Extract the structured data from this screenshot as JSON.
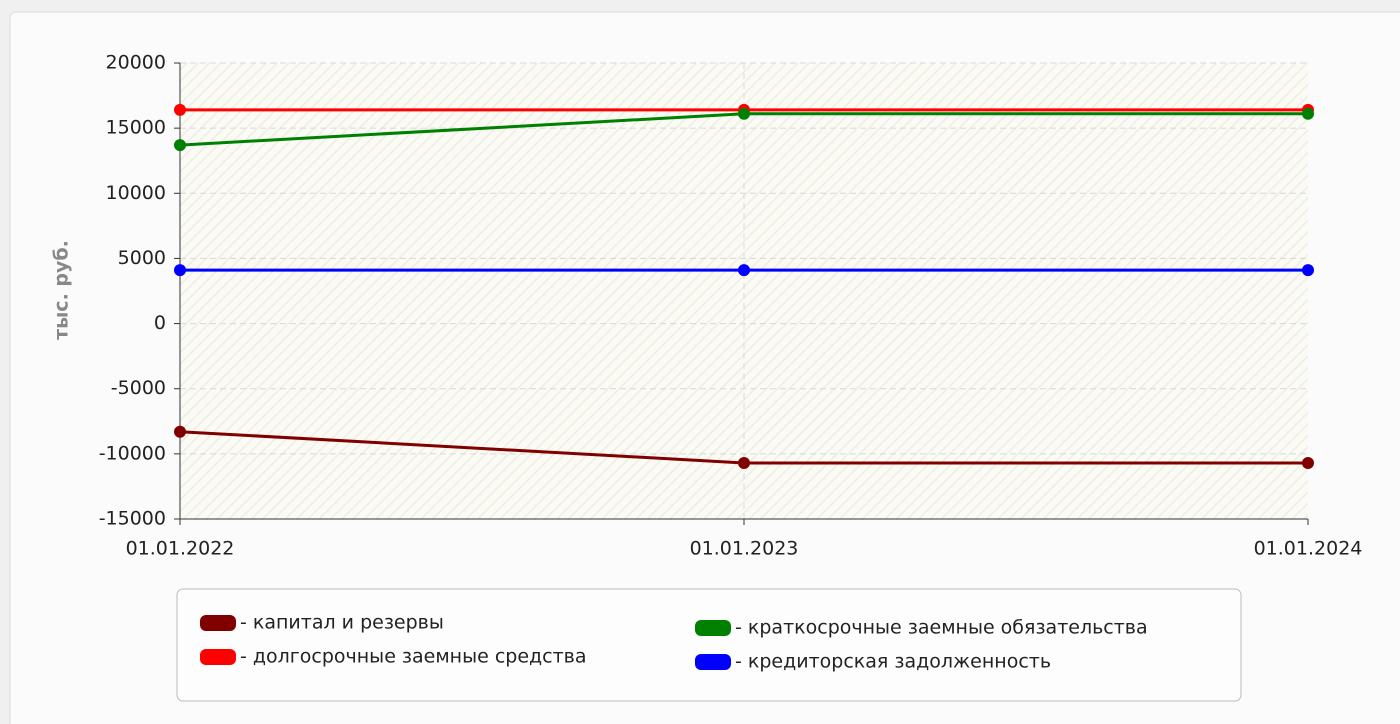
{
  "chart_data": {
    "type": "line",
    "y_label": "тыс. руб.",
    "categories": [
      "01.01.2022",
      "01.01.2023",
      "01.01.2024"
    ],
    "series": [
      {
        "name": "- капитал и резервы",
        "color": "#800000",
        "values": [
          -8300,
          -10700,
          -10700
        ]
      },
      {
        "name": "- долгосрочные заемные средства",
        "color": "#ff0000",
        "values": [
          16400,
          16400,
          16400
        ]
      },
      {
        "name": "- краткосрочные заемные обязательства",
        "color": "#008000",
        "values": [
          13700,
          16100,
          16100
        ]
      },
      {
        "name": "- кредиторская задолженность",
        "color": "#0000ff",
        "values": [
          4100,
          4100,
          4100
        ]
      }
    ],
    "ylim": [
      -15000,
      20000
    ],
    "yticks": [
      -15000,
      -10000,
      -5000,
      0,
      5000,
      10000,
      15000,
      20000
    ],
    "grid": true,
    "legend": "bottom"
  }
}
